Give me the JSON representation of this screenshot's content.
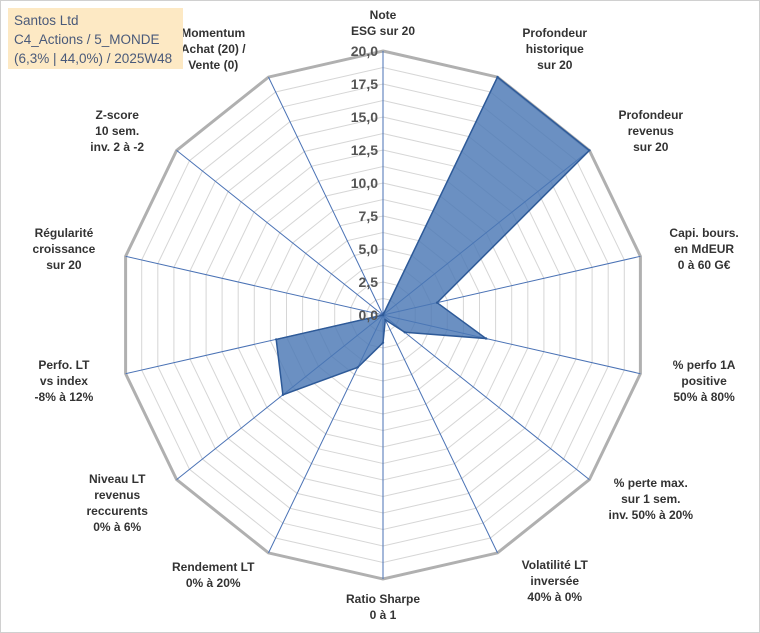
{
  "info": {
    "line1": "Santos Ltd",
    "line2": "C4_Actions / 5_MONDE",
    "line3": "(6,3% | 44,0%) / 2025W48"
  },
  "chart_data": {
    "type": "radar",
    "title": "",
    "rmax": 20,
    "ticks": [
      "0,0",
      "2,5",
      "5,0",
      "7,5",
      "10,0",
      "12,5",
      "15,0",
      "17,5",
      "20,0"
    ],
    "grid_rings": 16,
    "axes": [
      {
        "lines": [
          "Note",
          "ESG sur 20"
        ]
      },
      {
        "lines": [
          "Profondeur",
          "historique",
          "sur 20"
        ]
      },
      {
        "lines": [
          "Profondeur",
          "revenus",
          "sur 20"
        ]
      },
      {
        "lines": [
          "Capi. bours.",
          "en MdEUR",
          "0 à 60 G€"
        ]
      },
      {
        "lines": [
          "% perfo 1A",
          "positive",
          "50% à 80%"
        ]
      },
      {
        "lines": [
          "% perte max.",
          "sur 1 sem.",
          "inv. 50% à 20%"
        ]
      },
      {
        "lines": [
          "Volatilité LT",
          "inversée",
          "40% à 0%"
        ]
      },
      {
        "lines": [
          "Ratio Sharpe",
          "0 à 1"
        ]
      },
      {
        "lines": [
          "Rendement LT",
          "0% à 20%"
        ]
      },
      {
        "lines": [
          "Niveau LT",
          "revenus",
          "reccurents",
          "0% à 6%"
        ]
      },
      {
        "lines": [
          "Perfo. LT",
          "vs index",
          "-8% à 12%"
        ]
      },
      {
        "lines": [
          "Régularité",
          "croissance",
          "sur 20"
        ]
      },
      {
        "lines": [
          "Z-score",
          "10 sem.",
          "inv. 2 à -2"
        ]
      },
      {
        "lines": [
          "Momentum",
          "Achat (20) /",
          "Vente (0)"
        ]
      }
    ],
    "series": [
      {
        "values": [
          0,
          20,
          20,
          4.2,
          8.0,
          2.1,
          0.4,
          2.1,
          4.4,
          9.7,
          8.3,
          0,
          0,
          0
        ]
      }
    ],
    "colors": {
      "fill": "#4a78b5",
      "stroke": "#2e5a98",
      "grid": "#d6d6d6",
      "spoke": "#4a72b5",
      "outer": "#b0b0b0"
    }
  }
}
